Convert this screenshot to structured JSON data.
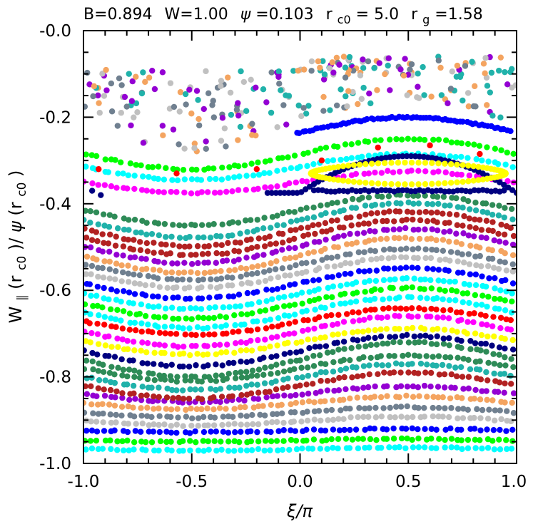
{
  "chart_data": {
    "type": "scatter",
    "title": "B=0.894 W=1.00 ψ=0.103 r_c0= 5.0 r_g=1.58",
    "title_parts": {
      "b": "B=0.894",
      "w": "W=1.00",
      "psi_sym": "ψ",
      "psi_val": "=0.103",
      "rc0_base": "r",
      "rc0_sub": "c0",
      "rc0_val": "= 5.0",
      "rg_base": "r",
      "rg_sub": "g",
      "rg_val": "=1.58"
    },
    "xlabel": "ξ/π",
    "ylabel": "W∥(rc0)/ψ(rc0)",
    "ylabel_parts": {
      "w": "W",
      "par": "∥",
      "mid1": "(r",
      "sub1": "c0",
      "mid2": ")/",
      "psi": "ψ",
      "mid3": "(r",
      "sub2": "c0",
      "end": ")"
    },
    "xlim": [
      -1.0,
      1.0
    ],
    "ylim": [
      -1.0,
      0.0
    ],
    "x_ticks": [
      "-1.0",
      "-0.5",
      "0.0",
      "0.5",
      "1.0"
    ],
    "y_ticks": [
      "-0.0",
      "-0.2",
      "-0.4",
      "-0.6",
      "-0.8",
      "-1.0"
    ],
    "grid": false,
    "legend": "none",
    "point_count_per_curve": 70,
    "curves": [
      {
        "y0": -0.967,
        "amp": 0.003,
        "color": "#00ffff"
      },
      {
        "y0": -0.947,
        "amp": 0.003,
        "color": "#00ff00"
      },
      {
        "y0": -0.924,
        "amp": 0.004,
        "color": "#0000ff"
      },
      {
        "y0": -0.902,
        "amp": 0.01,
        "color": "#c0c0c0"
      },
      {
        "y0": -0.882,
        "amp": 0.012,
        "color": "#708090"
      },
      {
        "y0": -0.86,
        "amp": 0.015,
        "color": "#f4a460"
      },
      {
        "y0": -0.84,
        "amp": 0.018,
        "color": "#9400d3"
      },
      {
        "y0": -0.82,
        "amp": 0.03,
        "color": "#b22222"
      },
      {
        "y0": -0.8,
        "amp": 0.03,
        "color": "#20b2aa"
      },
      {
        "y0": -0.78,
        "amp": 0.03,
        "color": "#2e8b57"
      },
      {
        "y0": -0.76,
        "amp": 0.04,
        "color": "#2e8b57"
      },
      {
        "y0": -0.74,
        "amp": 0.035,
        "color": "#000080"
      },
      {
        "y0": -0.718,
        "amp": 0.03,
        "color": "#ffff00"
      },
      {
        "y0": -0.695,
        "amp": 0.035,
        "color": "#ff00ff"
      },
      {
        "y0": -0.672,
        "amp": 0.03,
        "color": "#ff0000"
      },
      {
        "y0": -0.652,
        "amp": 0.035,
        "color": "#00ffff"
      },
      {
        "y0": -0.63,
        "amp": 0.035,
        "color": "#00ff00"
      },
      {
        "y0": -0.608,
        "amp": 0.035,
        "color": "#00ffff"
      },
      {
        "y0": -0.584,
        "amp": 0.035,
        "color": "#0000ff"
      },
      {
        "y0": -0.56,
        "amp": 0.035,
        "color": "#c0c0c0"
      },
      {
        "y0": -0.54,
        "amp": 0.035,
        "color": "#708090"
      },
      {
        "y0": -0.52,
        "amp": 0.04,
        "color": "#f4a460"
      },
      {
        "y0": -0.498,
        "amp": 0.04,
        "color": "#9400d3"
      },
      {
        "y0": -0.478,
        "amp": 0.04,
        "color": "#b22222"
      },
      {
        "y0": -0.458,
        "amp": 0.04,
        "color": "#b22222"
      },
      {
        "y0": -0.438,
        "amp": 0.04,
        "color": "#20b2aa"
      },
      {
        "y0": -0.415,
        "amp": 0.035,
        "color": "#2e8b57"
      },
      {
        "y0": -0.35,
        "amp": 0.025,
        "color": "#ff00ff"
      },
      {
        "y0": -0.315,
        "amp": 0.03,
        "color": "#00ffff"
      },
      {
        "y0": -0.285,
        "amp": 0.035,
        "color": "#00ff00"
      },
      {
        "y0": -0.235,
        "amp": 0.035,
        "color": "#0000ff",
        "xmin": -0.02,
        "xmax": 0.98
      }
    ],
    "special_curves": {
      "separatrix_outer": {
        "color": "#000080",
        "center_x": 0.5,
        "top": -0.29,
        "bottom": -0.375,
        "xmin": -0.15,
        "xmax": 1.0
      },
      "island_yellow": {
        "color": "#ffff00",
        "center_x": 0.5,
        "top": -0.305,
        "bottom": -0.355,
        "xmin": 0.05,
        "xmax": 0.95
      }
    },
    "isolated_points": [
      {
        "x": -0.93,
        "y": -0.32,
        "color": "#ff0000"
      },
      {
        "x": -0.57,
        "y": -0.33,
        "color": "#ff0000"
      },
      {
        "x": -0.2,
        "y": -0.32,
        "color": "#ff0000"
      },
      {
        "x": 0.1,
        "y": -0.3,
        "color": "#ff0000"
      },
      {
        "x": 0.36,
        "y": -0.27,
        "color": "#ff0000"
      },
      {
        "x": 0.6,
        "y": -0.265,
        "color": "#ff0000"
      },
      {
        "x": 0.83,
        "y": -0.285,
        "color": "#ff0000"
      },
      {
        "x": -0.96,
        "y": -0.37,
        "color": "#000080"
      },
      {
        "x": -0.92,
        "y": -0.38,
        "color": "#000080"
      }
    ],
    "chaotic_region": {
      "ymin": -0.22,
      "ymax": -0.03,
      "count": 260,
      "colors": [
        "#708090",
        "#20b2aa",
        "#c0c0c0",
        "#9400d3",
        "#f4a460"
      ]
    }
  }
}
